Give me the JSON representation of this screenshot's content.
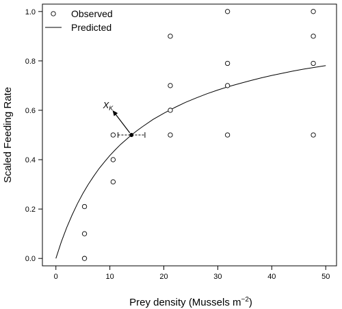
{
  "chart_data": {
    "type": "scatter",
    "xlabel": "Prey density (Mussels m",
    "xlabel_sup": "−2",
    "xlabel_close": ")",
    "ylabel": "Scaled Feeding Rate",
    "xlim": [
      -2.5,
      52
    ],
    "ylim": [
      -0.03,
      1.03
    ],
    "xticks": [
      0,
      10,
      20,
      30,
      40,
      50
    ],
    "yticks": [
      0.0,
      0.2,
      0.4,
      0.6,
      0.8,
      1.0
    ],
    "xtick_labels": [
      "0",
      "10",
      "20",
      "30",
      "40",
      "50"
    ],
    "ytick_labels": [
      "0.0",
      "0.2",
      "0.4",
      "0.6",
      "0.8",
      "1.0"
    ],
    "legend": {
      "position": "top-left",
      "entries": [
        {
          "label": "Observed",
          "marker": "open-circle"
        },
        {
          "label": "Predicted",
          "marker": "line"
        }
      ]
    },
    "series": [
      {
        "name": "Observed",
        "kind": "points",
        "x": [
          5.3,
          5.3,
          5.3,
          10.6,
          10.6,
          10.6,
          21.2,
          21.2,
          21.2,
          21.2,
          31.8,
          31.8,
          31.8,
          31.8,
          47.7,
          47.7,
          47.7,
          47.7
        ],
        "y": [
          0.0,
          0.1,
          0.21,
          0.31,
          0.4,
          0.5,
          0.5,
          0.6,
          0.7,
          0.9,
          0.5,
          0.7,
          0.79,
          1.0,
          0.5,
          0.79,
          0.9,
          1.0
        ]
      },
      {
        "name": "Predicted",
        "kind": "curve",
        "x": [
          0,
          1,
          2,
          3,
          4,
          5,
          6,
          7,
          8,
          9,
          10,
          11,
          12,
          13,
          14,
          15,
          16,
          18,
          20,
          22,
          24,
          26,
          28,
          30,
          32,
          34,
          36,
          38,
          40,
          42,
          44,
          46,
          48,
          50
        ],
        "y": [
          0.0,
          0.067,
          0.125,
          0.176,
          0.222,
          0.263,
          0.3,
          0.333,
          0.364,
          0.391,
          0.417,
          0.44,
          0.462,
          0.481,
          0.5,
          0.517,
          0.533,
          0.563,
          0.588,
          0.611,
          0.632,
          0.65,
          0.667,
          0.682,
          0.696,
          0.708,
          0.72,
          0.731,
          0.741,
          0.75,
          0.759,
          0.767,
          0.774,
          0.781
        ]
      }
    ],
    "annotation": {
      "label": "X",
      "label_sub": "K",
      "point": {
        "x": 14,
        "y": 0.5
      },
      "error_bar": {
        "xmin": 11.5,
        "xmax": 16.5
      },
      "label_anchor": {
        "x": 10.5,
        "y": 0.6
      }
    },
    "grid": false
  }
}
